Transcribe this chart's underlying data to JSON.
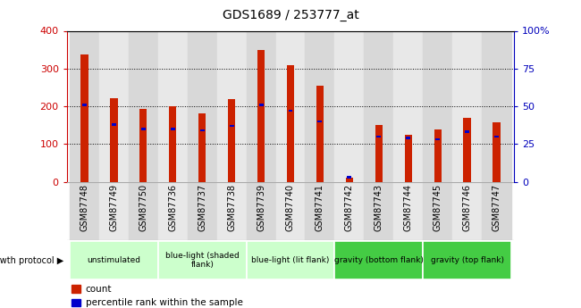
{
  "title": "GDS1689 / 253777_at",
  "samples": [
    "GSM87748",
    "GSM87749",
    "GSM87750",
    "GSM87736",
    "GSM87737",
    "GSM87738",
    "GSM87739",
    "GSM87740",
    "GSM87741",
    "GSM87742",
    "GSM87743",
    "GSM87744",
    "GSM87745",
    "GSM87746",
    "GSM87747"
  ],
  "counts": [
    338,
    222,
    192,
    200,
    180,
    220,
    348,
    310,
    255,
    10,
    150,
    125,
    138,
    170,
    158
  ],
  "percentiles": [
    51,
    38,
    35,
    35,
    34,
    37,
    51,
    47,
    40,
    3,
    30,
    29,
    28,
    33,
    30
  ],
  "ylim_left": [
    0,
    400
  ],
  "ylim_right": [
    0,
    100
  ],
  "yticks_left": [
    0,
    100,
    200,
    300,
    400
  ],
  "yticks_right": [
    0,
    25,
    50,
    75,
    100
  ],
  "groups": [
    {
      "label": "unstimulated",
      "start": 0,
      "end": 3,
      "color": "#ccffcc"
    },
    {
      "label": "blue-light (shaded\nflank)",
      "start": 3,
      "end": 6,
      "color": "#ccffcc"
    },
    {
      "label": "blue-light (lit flank)",
      "start": 6,
      "end": 9,
      "color": "#ccffcc"
    },
    {
      "label": "gravity (bottom flank)",
      "start": 9,
      "end": 12,
      "color": "#44cc44"
    },
    {
      "label": "gravity (top flank)",
      "start": 12,
      "end": 15,
      "color": "#44cc44"
    }
  ],
  "bar_color_red": "#cc2200",
  "bar_color_blue": "#0000cc",
  "tick_color_left": "#cc0000",
  "tick_color_right": "#0000bb",
  "bar_width": 0.25,
  "plot_bg": "#ffffff",
  "col_bg_even": "#d8d8d8",
  "col_bg_odd": "#e8e8e8",
  "figsize": [
    6.5,
    3.45
  ],
  "dpi": 100
}
